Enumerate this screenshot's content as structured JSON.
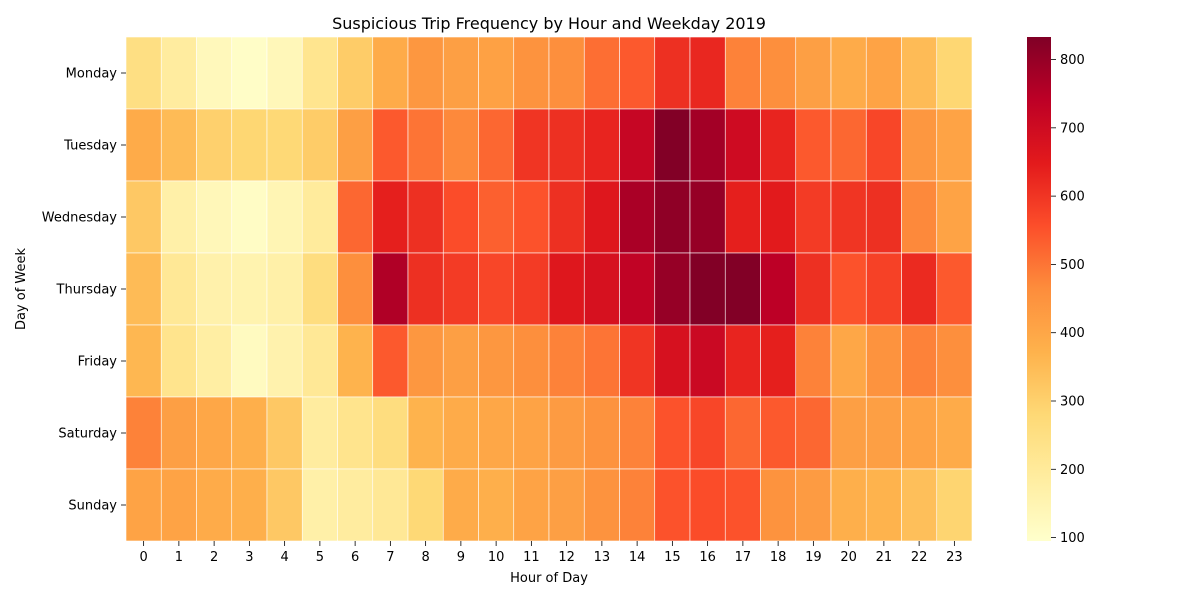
{
  "chart_data": {
    "type": "heatmap",
    "title": "Suspicious Trip Frequency by Hour and Weekday 2019",
    "xlabel": "Hour of Day",
    "ylabel": "Day of Week",
    "x_categories": [
      "0",
      "1",
      "2",
      "3",
      "4",
      "5",
      "6",
      "7",
      "8",
      "9",
      "10",
      "11",
      "12",
      "13",
      "14",
      "15",
      "16",
      "17",
      "18",
      "19",
      "20",
      "21",
      "22",
      "23"
    ],
    "y_categories": [
      "Monday",
      "Tuesday",
      "Wednesday",
      "Thursday",
      "Friday",
      "Saturday",
      "Sunday"
    ],
    "values": [
      [
        250,
        190,
        130,
        105,
        135,
        225,
        310,
        390,
        440,
        420,
        415,
        450,
        460,
        510,
        540,
        610,
        625,
        480,
        460,
        420,
        390,
        410,
        350,
        285
      ],
      [
        390,
        350,
        300,
        285,
        280,
        310,
        420,
        540,
        500,
        470,
        520,
        600,
        610,
        630,
        720,
        830,
        780,
        700,
        630,
        540,
        520,
        570,
        440,
        410
      ],
      [
        320,
        170,
        135,
        110,
        145,
        195,
        520,
        640,
        610,
        560,
        530,
        550,
        610,
        660,
        770,
        810,
        800,
        640,
        650,
        590,
        600,
        610,
        470,
        410
      ],
      [
        350,
        210,
        165,
        155,
        170,
        260,
        460,
        760,
        610,
        590,
        570,
        590,
        660,
        680,
        730,
        800,
        830,
        830,
        740,
        610,
        550,
        580,
        620,
        540
      ],
      [
        360,
        230,
        180,
        120,
        160,
        210,
        370,
        540,
        440,
        420,
        440,
        460,
        480,
        500,
        600,
        680,
        710,
        630,
        640,
        480,
        400,
        450,
        480,
        460
      ],
      [
        480,
        420,
        400,
        380,
        320,
        190,
        230,
        260,
        370,
        390,
        400,
        410,
        430,
        450,
        480,
        550,
        570,
        520,
        540,
        520,
        420,
        420,
        410,
        390
      ],
      [
        410,
        410,
        390,
        380,
        320,
        170,
        190,
        210,
        280,
        390,
        380,
        410,
        420,
        450,
        480,
        550,
        560,
        550,
        450,
        430,
        380,
        370,
        340,
        290
      ]
    ],
    "colormap": "YlOrRd",
    "color_stops": [
      "#ffffcc",
      "#ffeda0",
      "#fed976",
      "#feb24c",
      "#fd8d3c",
      "#fc4e2a",
      "#e31a1c",
      "#bd0026",
      "#800026"
    ],
    "colorbar": {
      "min": 95,
      "max": 833,
      "ticks": [
        100,
        200,
        300,
        400,
        500,
        600,
        700,
        800
      ]
    },
    "grid": false,
    "cell_border_color": "#ffffff"
  }
}
